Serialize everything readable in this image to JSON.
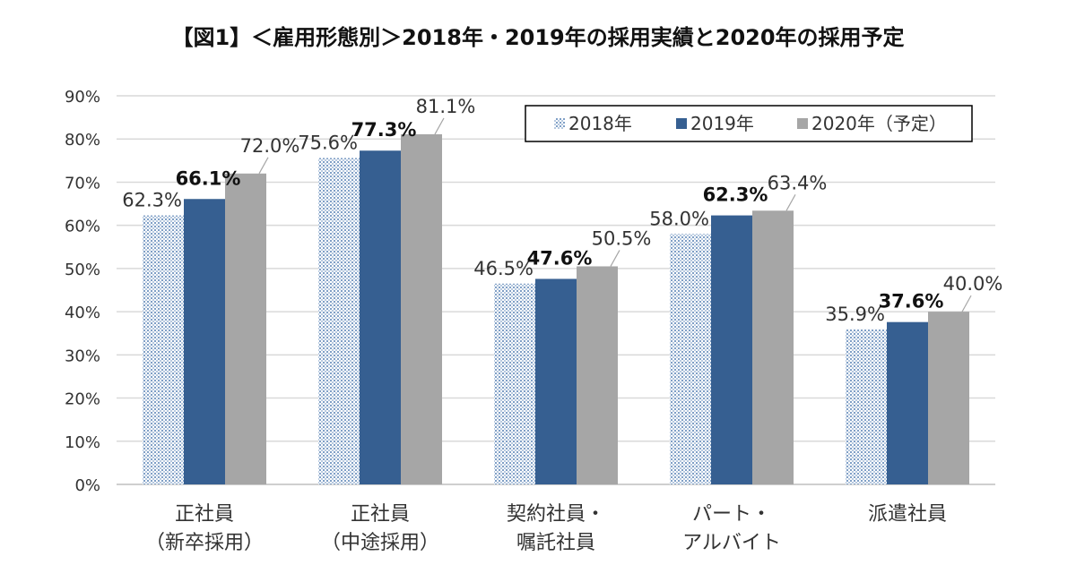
{
  "chart_data": {
    "type": "bar",
    "title": "【図1】＜雇用形態別＞2018年・2019年の採用実績と2020年の採用予定",
    "categories": [
      [
        "正社員",
        "（新卒採用）"
      ],
      [
        "正社員",
        "（中途採用）"
      ],
      [
        "契約社員・",
        "嘱託社員"
      ],
      [
        "パート・",
        "アルバイト"
      ],
      [
        "派遣社員"
      ]
    ],
    "series": [
      {
        "name": "2018年",
        "values": [
          62.3,
          75.6,
          46.5,
          58.0,
          35.9
        ],
        "labels": [
          "62.3%",
          "75.6%",
          "46.5%",
          "58.0%",
          "35.9%"
        ],
        "color": "#a9bfd8",
        "pattern": "dots",
        "bold": false
      },
      {
        "name": "2019年",
        "values": [
          66.1,
          77.3,
          47.6,
          62.3,
          37.6
        ],
        "labels": [
          "66.1%",
          "77.3%",
          "47.6%",
          "62.3%",
          "37.6%"
        ],
        "color": "#365f91",
        "pattern": "solid",
        "bold": true
      },
      {
        "name": "2020年（予定）",
        "values": [
          72.0,
          81.1,
          50.5,
          63.4,
          40.0
        ],
        "labels": [
          "72.0%",
          "81.1%",
          "50.5%",
          "63.4%",
          "40.0%"
        ],
        "color": "#a6a6a6",
        "pattern": "solid",
        "bold": false
      }
    ],
    "yticks": [
      "0%",
      "10%",
      "20%",
      "30%",
      "40%",
      "50%",
      "60%",
      "70%",
      "80%",
      "90%"
    ],
    "ylim": [
      0,
      90
    ],
    "grid": true,
    "legend": "top-right"
  }
}
